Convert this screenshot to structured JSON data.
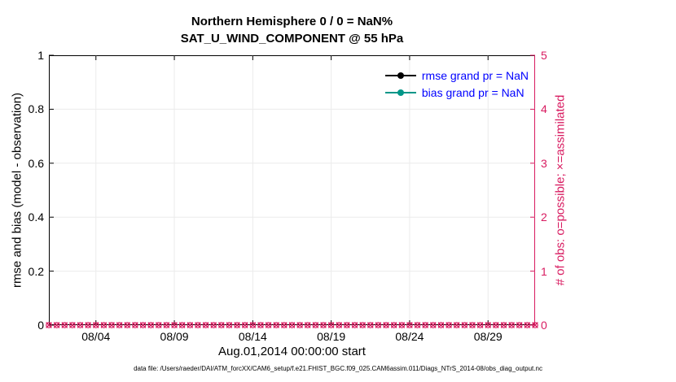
{
  "colors": {
    "background": "#ffffff",
    "axis_left": "#000000",
    "axis_right": "#d81b60",
    "grid": "#ebebeb",
    "legend_text": "#0000ff",
    "bias_teal": "#009688"
  },
  "footer": {
    "data_file": "data file: /Users/raeder/DAI/ATM_forcXX/CAM6_setup/f.e21.FHIST_BGC.f09_025.CAM6assim.011/Diags_NTrS_2014-08/obs_diag_output.nc"
  },
  "chart_data": {
    "type": "line",
    "title": "Northern Hemisphere 0 / 0 = NaN%",
    "subtitle": "SAT_U_WIND_COMPONENT @ 55 hPa",
    "xlabel": "Aug.01,2014 00:00:00 start",
    "ylabel_left": "rmse and bias (model - observation)",
    "ylabel_right": "# of obs: o=possible; ×=assimilated",
    "x_range_days": [
      0,
      31
    ],
    "x_start": "Aug.01,2014 00:00:00",
    "x_ticks": [
      {
        "day": 3,
        "label": "08/04"
      },
      {
        "day": 8,
        "label": "08/09"
      },
      {
        "day": 13,
        "label": "08/14"
      },
      {
        "day": 18,
        "label": "08/19"
      },
      {
        "day": 23,
        "label": "08/24"
      },
      {
        "day": 28,
        "label": "08/29"
      }
    ],
    "y_left": {
      "min": 0,
      "max": 1,
      "ticks": [
        0,
        0.2,
        0.4,
        0.6,
        0.8,
        1
      ],
      "tick_labels": [
        "0",
        "0.2",
        "0.4",
        "0.6",
        "0.8",
        "1"
      ]
    },
    "y_right": {
      "min": 0,
      "max": 5,
      "ticks": [
        0,
        1,
        2,
        3,
        4,
        5
      ],
      "tick_labels": [
        "0",
        "1",
        "2",
        "3",
        "4",
        "5"
      ]
    },
    "grid": true,
    "legend_position": "top-right-inside",
    "series": [
      {
        "name": "rmse",
        "legend": "rmse grand pr = NaN",
        "color": "#000000",
        "marker": "dot-line",
        "values": "NaN"
      },
      {
        "name": "bias",
        "legend": "bias grand pr = NaN",
        "color": "#009688",
        "marker": "dot-line",
        "values": "NaN"
      },
      {
        "name": "possible-obs",
        "axis": "right",
        "marker": "o",
        "color": "#d81b60",
        "value_per_time": 0,
        "times_per_day": 2
      },
      {
        "name": "assimilated-obs",
        "axis": "right",
        "marker": "x",
        "color": "#d81b60",
        "value_per_time": 0,
        "times_per_day": 2
      }
    ]
  }
}
